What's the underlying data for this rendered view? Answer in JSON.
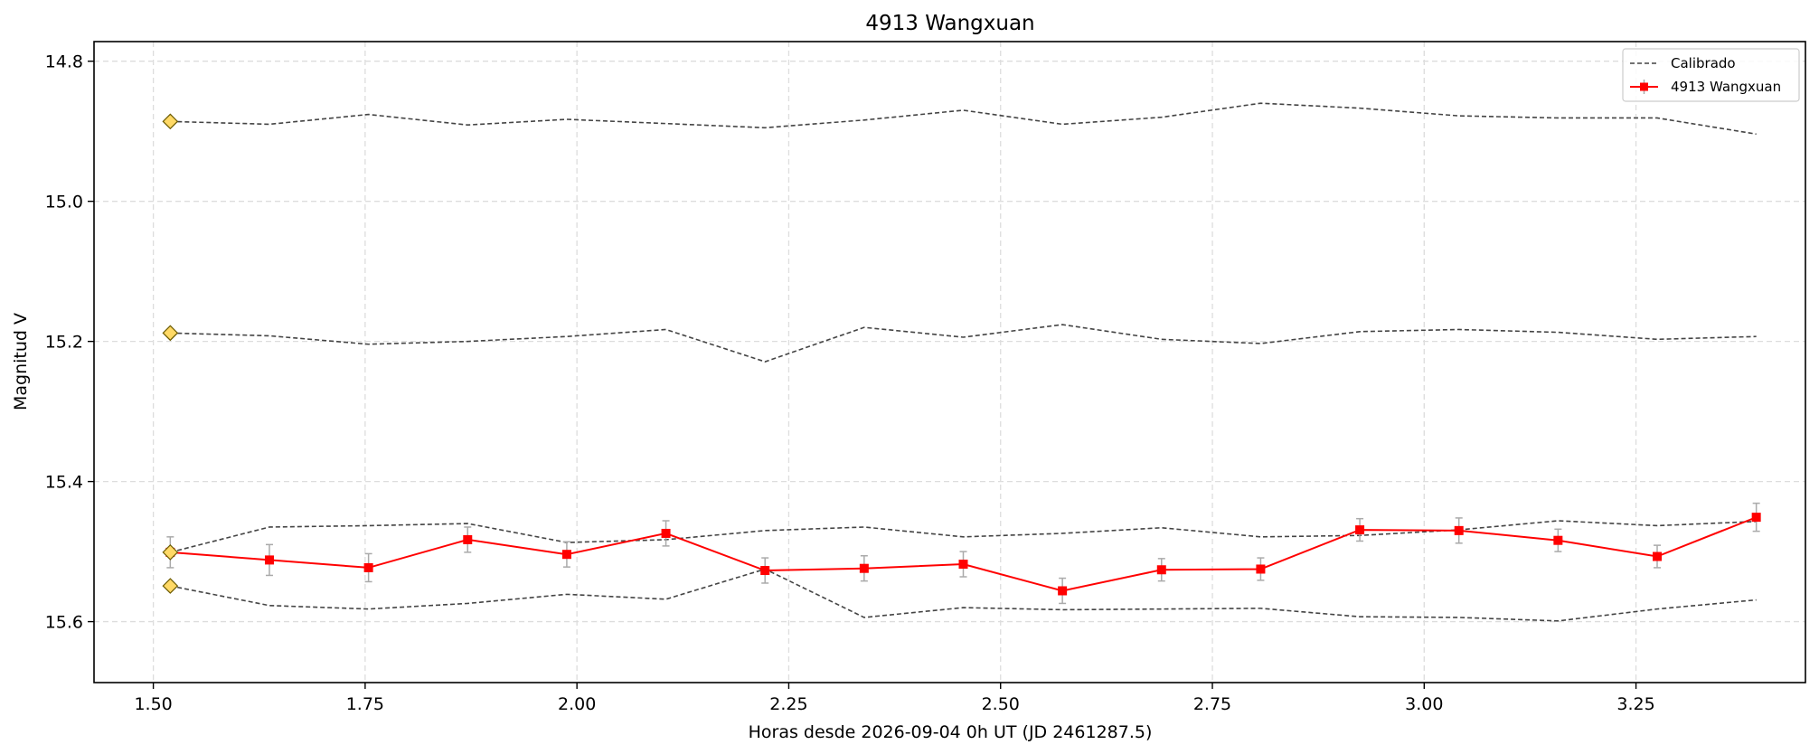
{
  "chart_data": {
    "type": "line",
    "title": "4913 Wangxuan",
    "xlabel": "Horas desde 2026-09-04 0h UT (JD 2461287.5)",
    "ylabel": "Magnitud V",
    "xlim": [
      1.43,
      3.45
    ],
    "ylim": [
      15.687,
      14.772
    ],
    "y_inverted": true,
    "grid": true,
    "legend_position": "top-right",
    "x_ticks": [
      1.5,
      1.75,
      2.0,
      2.25,
      2.5,
      2.75,
      3.0,
      3.25
    ],
    "x_tick_labels": [
      "1.50",
      "1.75",
      "2.00",
      "2.25",
      "2.50",
      "2.75",
      "3.00",
      "3.25"
    ],
    "y_ticks": [
      14.8,
      15.0,
      15.2,
      15.4,
      15.6
    ],
    "y_tick_labels": [
      "14.8",
      "15.0",
      "15.2",
      "15.4",
      "15.6"
    ],
    "legend": [
      {
        "label": "Calibrado",
        "style": "dashed"
      },
      {
        "label": "4913 Wangxuan",
        "style": "solid-square"
      }
    ],
    "x": [
      1.52,
      1.637,
      1.754,
      1.871,
      1.988,
      2.105,
      2.222,
      2.339,
      2.456,
      2.573,
      2.69,
      2.807,
      2.924,
      3.041,
      3.158,
      3.275,
      3.392
    ],
    "series": [
      {
        "name": "4913 Wangxuan",
        "color": "#ff0000",
        "marker": "square",
        "values": [
          15.501,
          15.512,
          15.523,
          15.483,
          15.504,
          15.474,
          15.527,
          15.524,
          15.518,
          15.556,
          15.526,
          15.525,
          15.469,
          15.47,
          15.484,
          15.507,
          15.451
        ],
        "errors": [
          0.022,
          0.022,
          0.02,
          0.018,
          0.018,
          0.018,
          0.018,
          0.018,
          0.018,
          0.018,
          0.016,
          0.016,
          0.016,
          0.018,
          0.016,
          0.016,
          0.02
        ]
      },
      {
        "role": "calibration",
        "color": "#444444",
        "values": [
          14.886,
          14.89,
          14.876,
          14.891,
          14.883,
          14.889,
          14.895,
          14.884,
          14.87,
          14.89,
          14.88,
          14.86,
          14.867,
          14.878,
          14.881,
          14.881,
          14.904
        ]
      },
      {
        "role": "calibration",
        "color": "#444444",
        "values": [
          15.188,
          15.192,
          15.204,
          15.2,
          15.193,
          15.183,
          15.229,
          15.18,
          15.194,
          15.176,
          15.197,
          15.203,
          15.186,
          15.183,
          15.187,
          15.197,
          15.193
        ]
      },
      {
        "role": "calibration",
        "color": "#444444",
        "values": [
          15.501,
          15.465,
          15.463,
          15.46,
          15.487,
          15.483,
          15.47,
          15.465,
          15.479,
          15.474,
          15.466,
          15.479,
          15.477,
          15.469,
          15.456,
          15.463,
          15.457
        ]
      },
      {
        "role": "calibration",
        "color": "#444444",
        "values": [
          15.549,
          15.577,
          15.582,
          15.574,
          15.561,
          15.568,
          15.525,
          15.594,
          15.58,
          15.583,
          15.582,
          15.581,
          15.593,
          15.594,
          15.599,
          15.582,
          15.569
        ]
      }
    ],
    "reference_markers": {
      "color": "#ffd966",
      "edge_color": "#6b5a00",
      "shape": "diamond",
      "x": 1.52,
      "values": [
        14.886,
        15.188,
        15.501,
        15.549
      ]
    }
  }
}
